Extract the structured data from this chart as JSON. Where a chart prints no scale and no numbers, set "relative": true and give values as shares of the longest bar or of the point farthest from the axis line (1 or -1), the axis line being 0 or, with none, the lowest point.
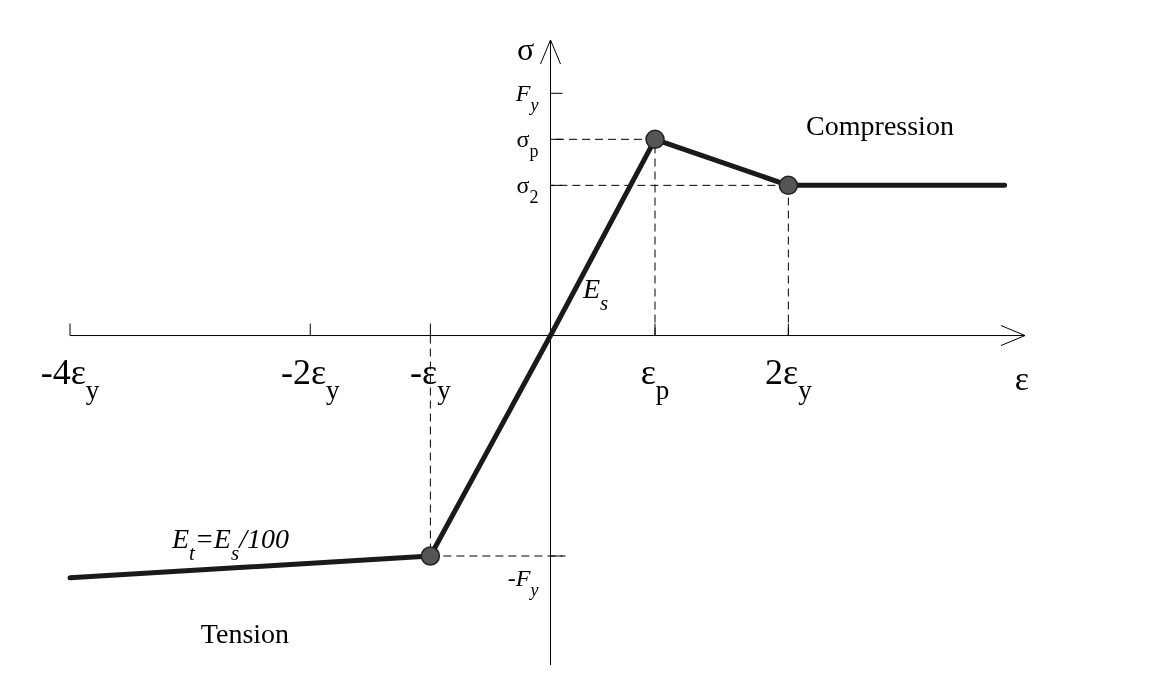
{
  "chart_data": {
    "type": "line",
    "relative": true,
    "xlabel": "ε",
    "ylabel": "σ",
    "xlim": [
      -4,
      3.95
    ],
    "xticks": [
      {
        "value": -4,
        "label": "-4ε$_{y}$"
      },
      {
        "value": -2,
        "label": "-2ε$_{y}$"
      },
      {
        "value": -1,
        "label": "-ε$_{y}$"
      },
      {
        "value": 0.87,
        "label": "ε$_{p}$"
      },
      {
        "value": 1.98,
        "label": "2ε$_{y}$"
      }
    ],
    "series": [
      {
        "type": "line",
        "color": "#1a1a1a",
        "marker": "none",
        "x": [
          -4,
          -1,
          0,
          0.87,
          1.98,
          3.78
        ],
        "values": [
          -1.0,
          -0.91,
          0,
          0.81,
          0.62,
          0.62
        ]
      },
      {
        "type": "scatter",
        "color": "#555555",
        "marker": "circle",
        "x": [
          -1,
          0.87,
          1.98
        ],
        "values": [
          -0.91,
          0.81,
          0.62
        ]
      }
    ],
    "ref_lines": [
      {
        "axis": "y",
        "value": 1.0,
        "label": "F$_{y}$"
      },
      {
        "axis": "y",
        "value": 0.81,
        "label": "σ$_{p}$",
        "line_style": "dashed",
        "color": "#000000"
      },
      {
        "axis": "y",
        "value": 0.62,
        "label": "σ$_{2}$",
        "line_style": "dashed",
        "color": "#000000"
      },
      {
        "axis": "y",
        "value": -0.91,
        "label": "-F$_{y}$",
        "line_style": "dashed",
        "color": "#000000"
      },
      {
        "axis": "x",
        "value": -1,
        "label": null,
        "line_style": "dashed",
        "color": "#000000"
      },
      {
        "axis": "x",
        "value": 0.87,
        "label": null,
        "line_style": "dashed",
        "color": "#000000"
      },
      {
        "axis": "x",
        "value": 1.98,
        "label": null,
        "line_style": "dashed",
        "color": "#000000"
      }
    ],
    "annotations": [
      "Compression",
      "Tension",
      "E$_{s}$",
      "E$_{t}$=E$_{s}$/100"
    ]
  }
}
